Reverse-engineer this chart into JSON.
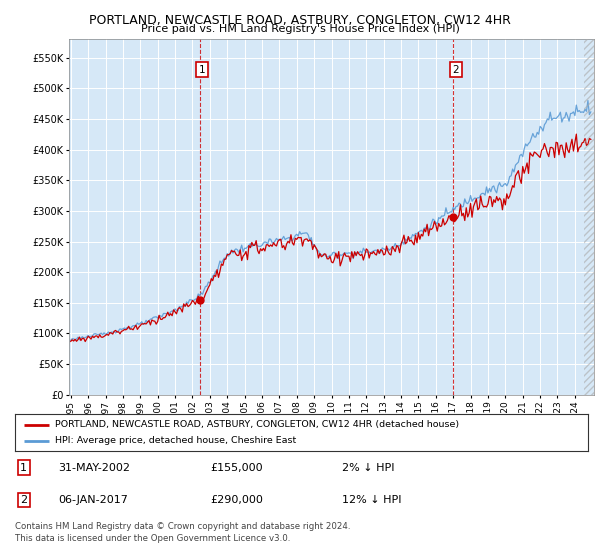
{
  "title": "PORTLAND, NEWCASTLE ROAD, ASTBURY, CONGLETON, CW12 4HR",
  "subtitle": "Price paid vs. HM Land Registry's House Price Index (HPI)",
  "legend_line1": "PORTLAND, NEWCASTLE ROAD, ASTBURY, CONGLETON, CW12 4HR (detached house)",
  "legend_line2": "HPI: Average price, detached house, Cheshire East",
  "annotation1_date": "31-MAY-2002",
  "annotation1_value": "£155,000",
  "annotation1_hpi": "2% ↓ HPI",
  "annotation2_date": "06-JAN-2017",
  "annotation2_value": "£290,000",
  "annotation2_hpi": "12% ↓ HPI",
  "footer": "Contains HM Land Registry data © Crown copyright and database right 2024.\nThis data is licensed under the Open Government Licence v3.0.",
  "hpi_color": "#5b9bd5",
  "price_color": "#cc0000",
  "marker_color": "#cc0000",
  "vline_color": "#cc0000",
  "bg_color": "#d6e8f7",
  "ylim": [
    0,
    580000
  ],
  "yticks": [
    0,
    50000,
    100000,
    150000,
    200000,
    250000,
    300000,
    350000,
    400000,
    450000,
    500000,
    550000
  ],
  "x_start_year": 1995,
  "x_end_year": 2025,
  "t1": 2002.4167,
  "t2": 2017.0,
  "price1": 155000,
  "price2": 290000
}
